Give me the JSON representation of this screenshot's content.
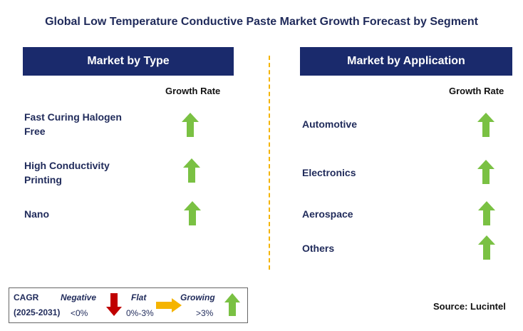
{
  "title": "Global Low Temperature Conductive Paste Market Growth Forecast by Segment",
  "left_panel": {
    "header": "Market by Type",
    "growth_label": "Growth Rate",
    "rows": [
      {
        "label_line1": "Fast Curing Halogen",
        "label_line2": "Free",
        "trend": "growing"
      },
      {
        "label_line1": "High Conductivity",
        "label_line2": "Printing",
        "trend": "growing"
      },
      {
        "label_line1": "Nano",
        "label_line2": "",
        "trend": "growing"
      }
    ]
  },
  "right_panel": {
    "header": "Market by Application",
    "growth_label": "Growth Rate",
    "rows": [
      {
        "label": "Automotive",
        "trend": "growing"
      },
      {
        "label": "Electronics",
        "trend": "growing"
      },
      {
        "label": "Aerospace",
        "trend": "growing"
      },
      {
        "label": "Others",
        "trend": "growing"
      }
    ]
  },
  "legend": {
    "cagr": "CAGR",
    "period": "(2025-2031)",
    "negative": {
      "label": "Negative",
      "range": "<0%",
      "color": "#c00000",
      "icon": "down-arrow-icon"
    },
    "flat": {
      "label": "Flat",
      "range": "0%-3%",
      "color": "#f5b400",
      "icon": "right-arrow-icon"
    },
    "growing": {
      "label": "Growing",
      "range": ">3%",
      "color": "#7ac143",
      "icon": "up-arrow-icon"
    }
  },
  "source": "Source: Lucintel",
  "colors": {
    "header_bg": "#1a2a6c",
    "divider": "#f5b400",
    "up_arrow": "#7ac143"
  }
}
